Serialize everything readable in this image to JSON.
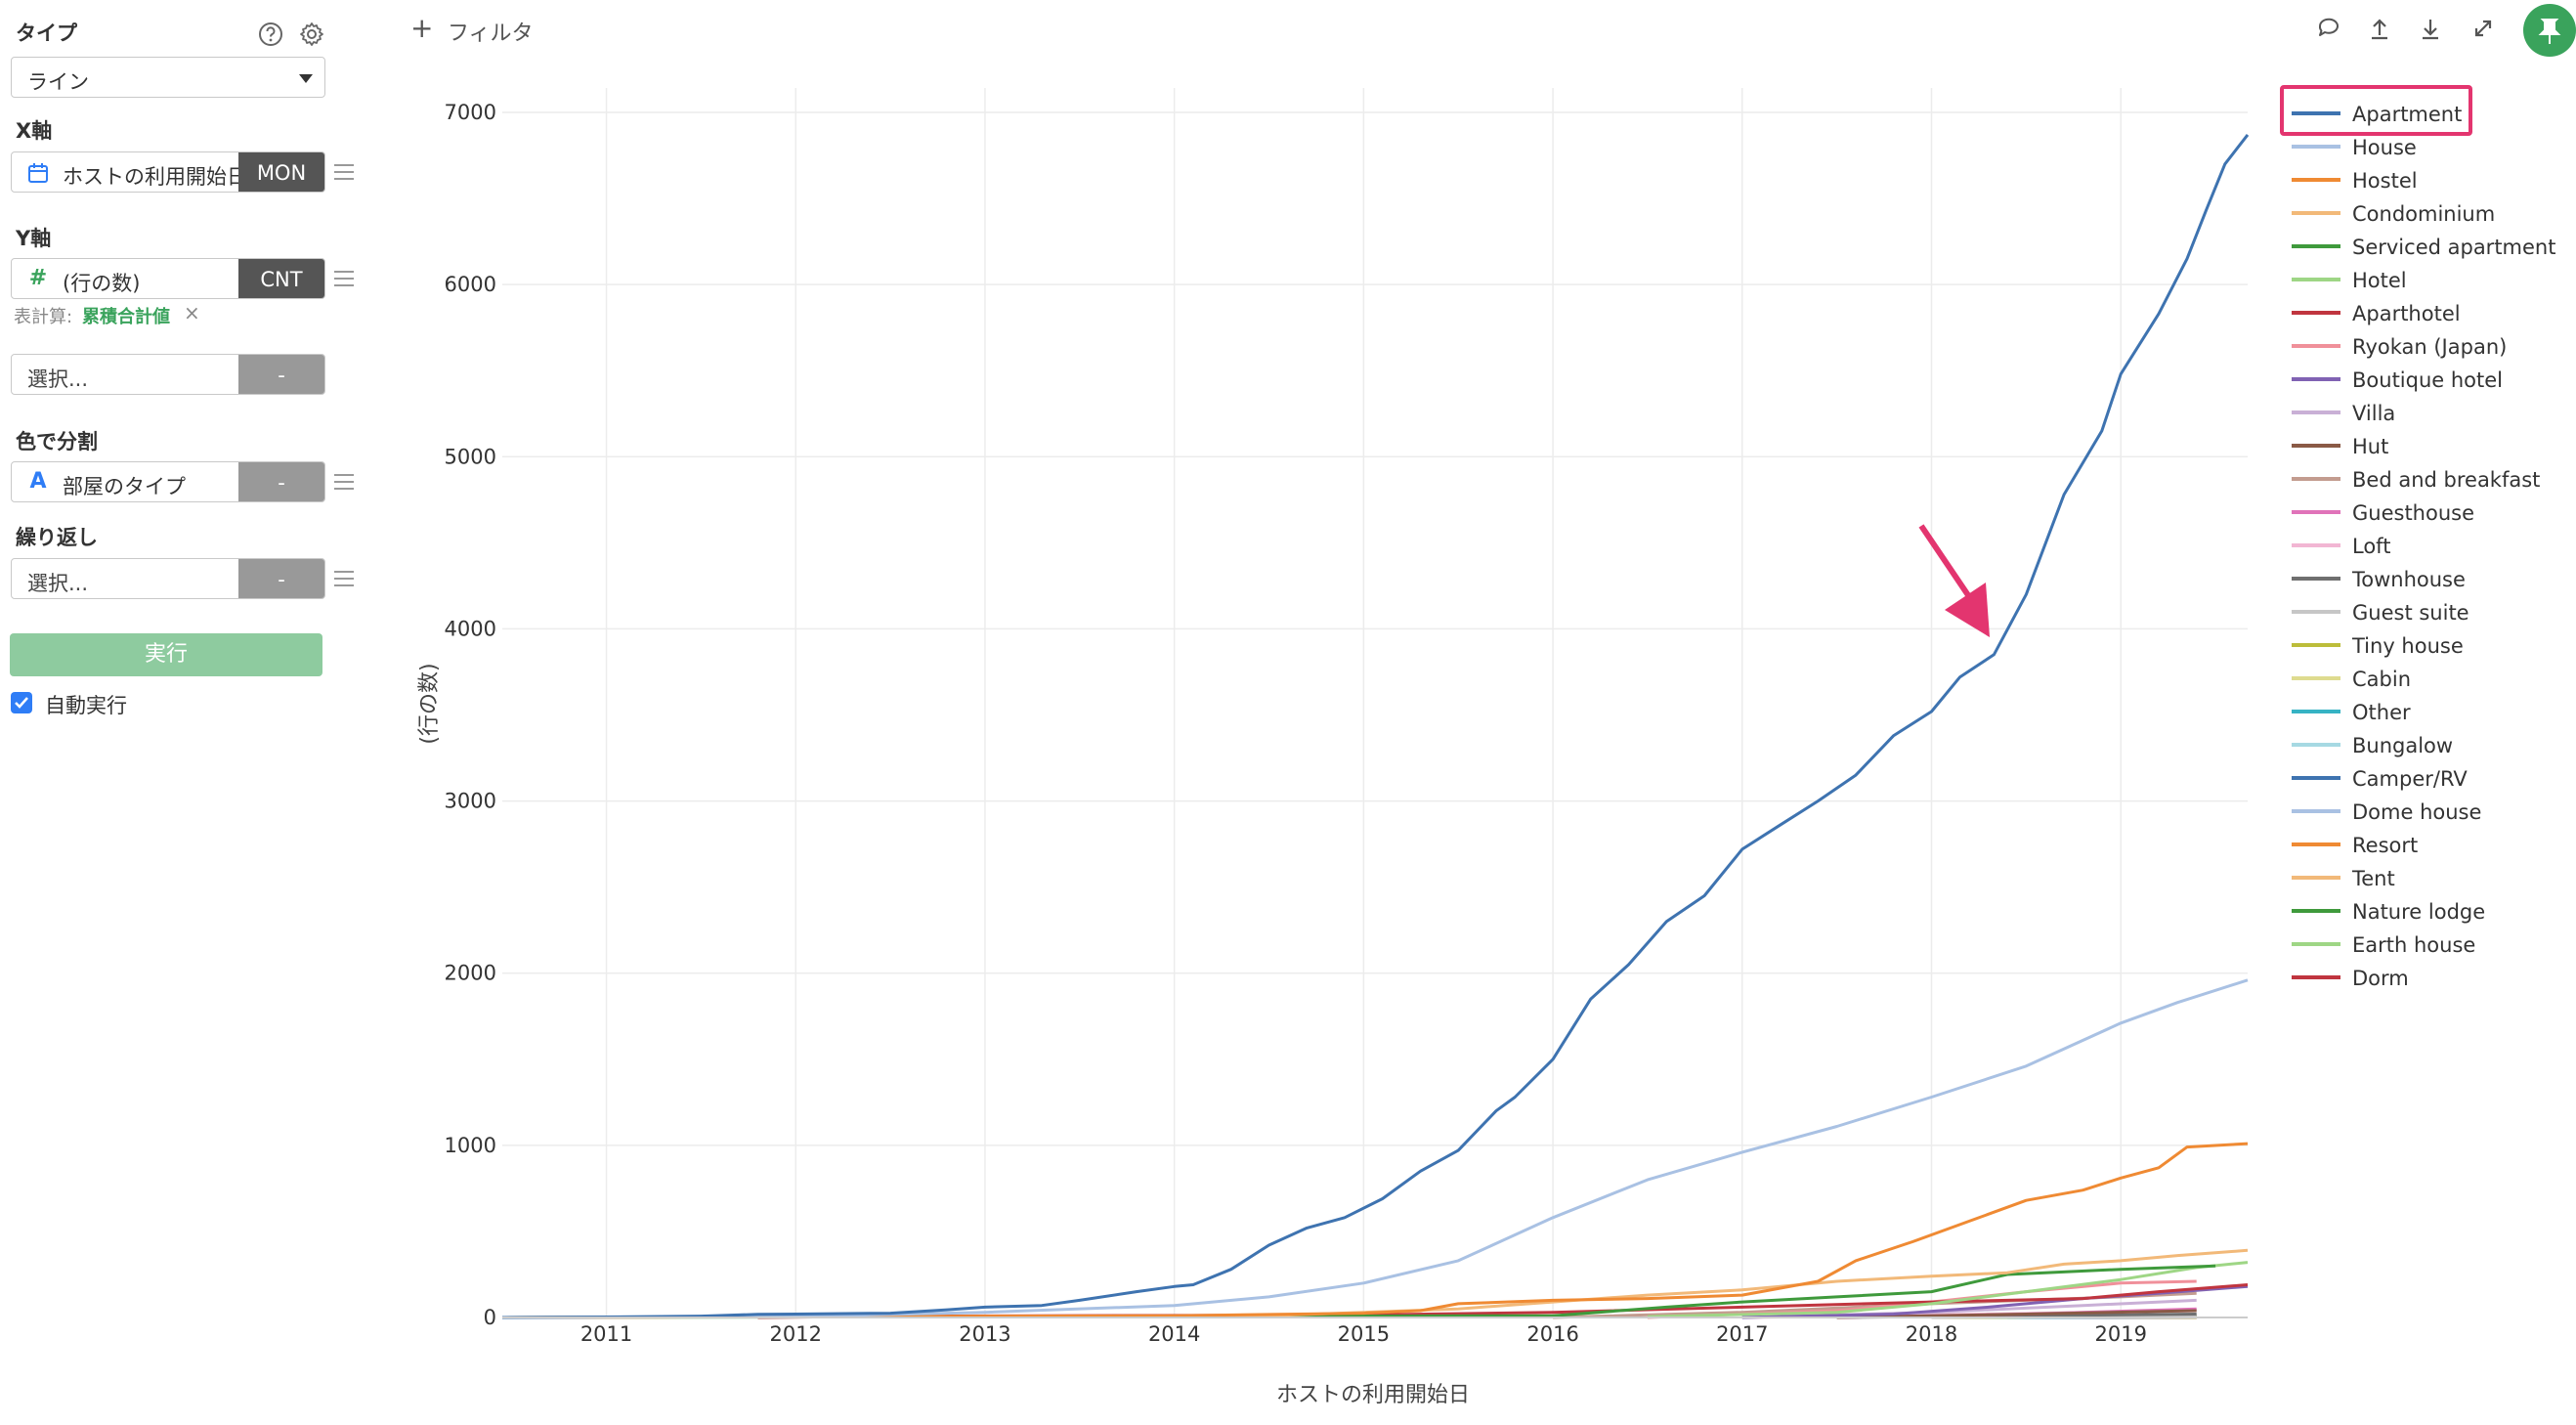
{
  "panel": {
    "type_label": "タイプ",
    "type_value": "ライン",
    "x_label": "X軸",
    "x_field": "ホストの利用開始日",
    "x_tag": "MON",
    "y_label": "Y軸",
    "y_field": "(行の数)",
    "y_tag": "CNT",
    "calc_label": "表計算:",
    "calc_value": "累積合計値",
    "calc_remove": "×",
    "extra_placeholder": "選択...",
    "extra_tag": "-",
    "color_label": "色で分割",
    "color_field": "部屋のタイプ",
    "color_tag": "-",
    "repeat_label": "繰り返し",
    "repeat_placeholder": "選択...",
    "repeat_tag": "-",
    "run_label": "実行",
    "auto_label": "自動実行",
    "auto_checked": true
  },
  "toolbar": {
    "filter_plus": "+",
    "filter_label": "フィルタ"
  },
  "colors": {
    "accent_green": "#3aa35c",
    "highlight_pink": "#e3356f"
  },
  "chart_data": {
    "type": "line",
    "xlabel": "ホストの利用開始日",
    "ylabel": "(行の数)",
    "ylim": [
      0,
      7000
    ],
    "xlim": [
      2010.45,
      2019.67
    ],
    "yticks": [
      0,
      1000,
      2000,
      3000,
      4000,
      5000,
      6000,
      7000
    ],
    "xticks": [
      "2011",
      "2012",
      "2013",
      "2014",
      "2015",
      "2016",
      "2017",
      "2018",
      "2019"
    ],
    "grid": true,
    "legend_position": "right",
    "highlighted_legend": "Apartment",
    "series": [
      {
        "name": "Apartment",
        "color": "#3e73b0",
        "points": [
          [
            2010.45,
            0
          ],
          [
            2011.0,
            3
          ],
          [
            2011.5,
            8
          ],
          [
            2011.8,
            18
          ],
          [
            2012.0,
            20
          ],
          [
            2012.5,
            25
          ],
          [
            2012.8,
            45
          ],
          [
            2013.0,
            60
          ],
          [
            2013.3,
            70
          ],
          [
            2013.5,
            100
          ],
          [
            2013.8,
            150
          ],
          [
            2014.0,
            180
          ],
          [
            2014.1,
            190
          ],
          [
            2014.3,
            280
          ],
          [
            2014.5,
            420
          ],
          [
            2014.7,
            520
          ],
          [
            2014.9,
            580
          ],
          [
            2015.1,
            690
          ],
          [
            2015.3,
            850
          ],
          [
            2015.5,
            970
          ],
          [
            2015.7,
            1200
          ],
          [
            2015.8,
            1280
          ],
          [
            2016.0,
            1500
          ],
          [
            2016.2,
            1850
          ],
          [
            2016.4,
            2050
          ],
          [
            2016.6,
            2300
          ],
          [
            2016.8,
            2450
          ],
          [
            2017.0,
            2720
          ],
          [
            2017.2,
            2860
          ],
          [
            2017.4,
            3000
          ],
          [
            2017.6,
            3150
          ],
          [
            2017.8,
            3380
          ],
          [
            2018.0,
            3520
          ],
          [
            2018.15,
            3720
          ],
          [
            2018.33,
            3850
          ],
          [
            2018.5,
            4200
          ],
          [
            2018.7,
            4780
          ],
          [
            2018.9,
            5150
          ],
          [
            2019.0,
            5480
          ],
          [
            2019.2,
            5830
          ],
          [
            2019.35,
            6150
          ],
          [
            2019.45,
            6430
          ],
          [
            2019.55,
            6700
          ],
          [
            2019.67,
            6870
          ]
        ]
      },
      {
        "name": "House",
        "color": "#a9c1e3",
        "points": [
          [
            2010.45,
            0
          ],
          [
            2012.0,
            5
          ],
          [
            2013.0,
            30
          ],
          [
            2014.0,
            70
          ],
          [
            2014.5,
            120
          ],
          [
            2015.0,
            200
          ],
          [
            2015.5,
            330
          ],
          [
            2016.0,
            580
          ],
          [
            2016.5,
            800
          ],
          [
            2017.0,
            960
          ],
          [
            2017.5,
            1110
          ],
          [
            2018.0,
            1280
          ],
          [
            2018.5,
            1460
          ],
          [
            2019.0,
            1710
          ],
          [
            2019.3,
            1830
          ],
          [
            2019.67,
            1960
          ]
        ]
      },
      {
        "name": "Hostel",
        "color": "#ef8a33",
        "points": [
          [
            2010.45,
            0
          ],
          [
            2014.0,
            10
          ],
          [
            2015.0,
            25
          ],
          [
            2015.3,
            40
          ],
          [
            2015.5,
            80
          ],
          [
            2016.0,
            100
          ],
          [
            2016.5,
            110
          ],
          [
            2017.0,
            130
          ],
          [
            2017.4,
            210
          ],
          [
            2017.6,
            330
          ],
          [
            2017.9,
            440
          ],
          [
            2018.2,
            560
          ],
          [
            2018.5,
            680
          ],
          [
            2018.8,
            740
          ],
          [
            2019.0,
            810
          ],
          [
            2019.2,
            870
          ],
          [
            2019.35,
            990
          ],
          [
            2019.67,
            1010
          ]
        ]
      },
      {
        "name": "Condominium",
        "color": "#f2b979",
        "points": [
          [
            2010.45,
            0
          ],
          [
            2014.5,
            10
          ],
          [
            2015.5,
            50
          ],
          [
            2016.0,
            90
          ],
          [
            2016.5,
            130
          ],
          [
            2017.0,
            160
          ],
          [
            2017.5,
            210
          ],
          [
            2018.0,
            240
          ],
          [
            2018.4,
            260
          ],
          [
            2018.7,
            310
          ],
          [
            2019.0,
            330
          ],
          [
            2019.3,
            360
          ],
          [
            2019.67,
            390
          ]
        ]
      },
      {
        "name": "Serviced apartment",
        "color": "#3f9a3c",
        "points": [
          [
            2010.45,
            0
          ],
          [
            2016.0,
            10
          ],
          [
            2016.6,
            60
          ],
          [
            2017.0,
            90
          ],
          [
            2017.5,
            120
          ],
          [
            2018.0,
            150
          ],
          [
            2018.4,
            250
          ],
          [
            2018.6,
            260
          ],
          [
            2019.0,
            280
          ],
          [
            2019.5,
            300
          ]
        ]
      },
      {
        "name": "Hotel",
        "color": "#9ed685",
        "points": [
          [
            2016.5,
            5
          ],
          [
            2017.5,
            30
          ],
          [
            2018.0,
            80
          ],
          [
            2018.5,
            150
          ],
          [
            2019.0,
            220
          ],
          [
            2019.4,
            290
          ],
          [
            2019.67,
            320
          ]
        ]
      },
      {
        "name": "Aparthotel",
        "color": "#c0353f",
        "points": [
          [
            2011.8,
            0
          ],
          [
            2012.6,
            8
          ],
          [
            2015.0,
            15
          ],
          [
            2016.0,
            30
          ],
          [
            2017.0,
            60
          ],
          [
            2018.0,
            90
          ],
          [
            2018.8,
            110
          ],
          [
            2019.2,
            150
          ],
          [
            2019.67,
            190
          ]
        ]
      },
      {
        "name": "Ryokan (Japan)",
        "color": "#f0909a",
        "points": [
          [
            2016.5,
            0
          ],
          [
            2017.5,
            40
          ],
          [
            2018.0,
            90
          ],
          [
            2018.5,
            150
          ],
          [
            2019.0,
            200
          ],
          [
            2019.4,
            210
          ]
        ]
      },
      {
        "name": "Boutique hotel",
        "color": "#8062b3",
        "points": [
          [
            2017.0,
            0
          ],
          [
            2017.8,
            20
          ],
          [
            2018.3,
            60
          ],
          [
            2018.8,
            110
          ],
          [
            2019.2,
            140
          ],
          [
            2019.67,
            180
          ]
        ]
      },
      {
        "name": "Villa",
        "color": "#c9b0d6",
        "points": [
          [
            2017.0,
            0
          ],
          [
            2018.0,
            30
          ],
          [
            2018.8,
            70
          ],
          [
            2019.4,
            100
          ]
        ]
      },
      {
        "name": "Hut",
        "color": "#8a5a46",
        "points": [
          [
            2017.5,
            0
          ],
          [
            2018.5,
            20
          ],
          [
            2019.4,
            40
          ]
        ]
      },
      {
        "name": "Bed and breakfast",
        "color": "#c39c8f",
        "points": [
          [
            2016.0,
            0
          ],
          [
            2017.0,
            30
          ],
          [
            2018.0,
            80
          ],
          [
            2019.0,
            120
          ],
          [
            2019.4,
            140
          ]
        ]
      },
      {
        "name": "Guesthouse",
        "color": "#e073b9",
        "points": [
          [
            2017.5,
            0
          ],
          [
            2018.5,
            20
          ],
          [
            2019.4,
            50
          ]
        ]
      },
      {
        "name": "Loft",
        "color": "#f2b6d3",
        "points": [
          [
            2017.0,
            0
          ],
          [
            2018.0,
            15
          ],
          [
            2019.4,
            40
          ]
        ]
      },
      {
        "name": "Townhouse",
        "color": "#6f6f6f",
        "points": [
          [
            2017.5,
            0
          ],
          [
            2018.5,
            10
          ],
          [
            2019.4,
            20
          ]
        ]
      },
      {
        "name": "Guest suite",
        "color": "#c6c6c6",
        "points": [
          [
            2018.0,
            0
          ],
          [
            2019.4,
            10
          ]
        ]
      },
      {
        "name": "Tiny house",
        "color": "#bcbd3a",
        "points": [
          [
            2018.0,
            0
          ],
          [
            2019.4,
            8
          ]
        ]
      },
      {
        "name": "Cabin",
        "color": "#dedb8f",
        "points": [
          [
            2018.0,
            0
          ],
          [
            2019.4,
            6
          ]
        ]
      },
      {
        "name": "Other",
        "color": "#36b3c4",
        "points": [
          [
            2018.0,
            0
          ],
          [
            2019.4,
            5
          ]
        ]
      },
      {
        "name": "Bungalow",
        "color": "#a6d9e3",
        "points": [
          [
            2018.0,
            0
          ],
          [
            2019.4,
            4
          ]
        ]
      },
      {
        "name": "Camper/RV",
        "color": "#3e73b0",
        "points": [
          [
            2018.4,
            0
          ],
          [
            2019.4,
            3
          ]
        ]
      },
      {
        "name": "Dome house",
        "color": "#a9c1e3",
        "points": [
          [
            2018.4,
            0
          ],
          [
            2019.4,
            3
          ]
        ]
      },
      {
        "name": "Resort",
        "color": "#ef8a33",
        "points": [
          [
            2018.4,
            0
          ],
          [
            2019.4,
            2
          ]
        ]
      },
      {
        "name": "Tent",
        "color": "#f2b979",
        "points": [
          [
            2018.6,
            0
          ],
          [
            2019.4,
            2
          ]
        ]
      },
      {
        "name": "Nature lodge",
        "color": "#3f9a3c",
        "points": [
          [
            2018.6,
            0
          ],
          [
            2019.4,
            1
          ]
        ]
      },
      {
        "name": "Earth house",
        "color": "#9ed685",
        "points": [
          [
            2018.6,
            0
          ],
          [
            2019.4,
            1
          ]
        ]
      },
      {
        "name": "Dorm",
        "color": "#c0353f",
        "points": [
          [
            2018.6,
            0
          ],
          [
            2019.4,
            1
          ]
        ]
      }
    ]
  }
}
